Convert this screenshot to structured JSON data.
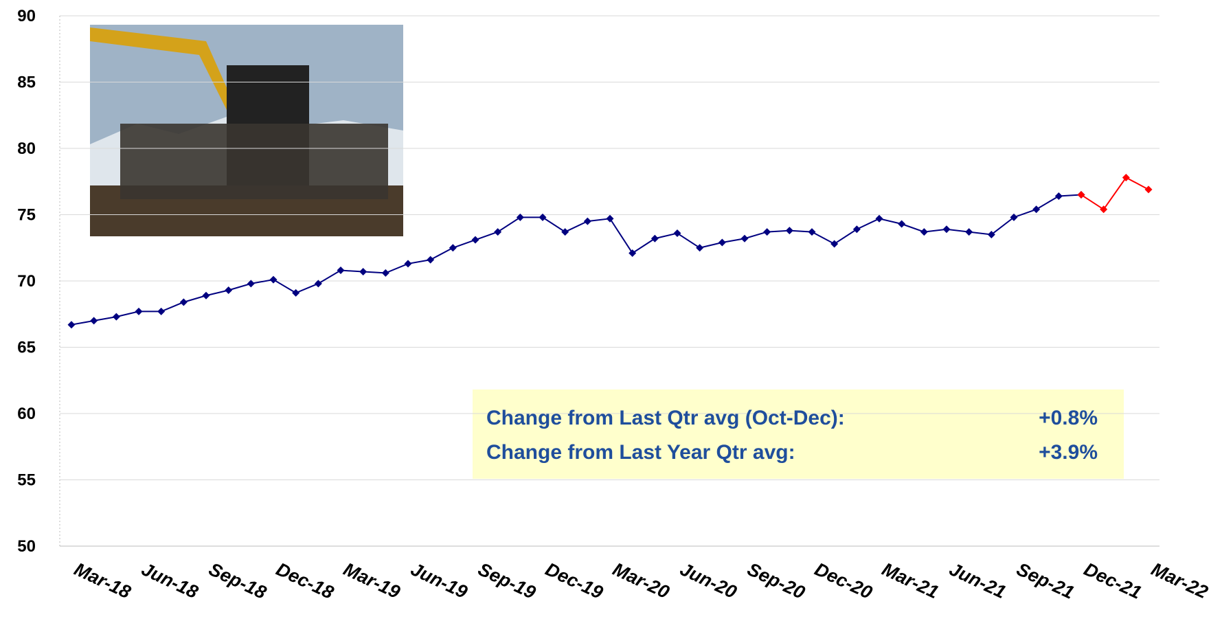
{
  "chart_data": {
    "type": "line",
    "categories": [
      "Mar-18",
      null,
      null,
      "Jun-18",
      null,
      null,
      "Sep-18",
      null,
      null,
      "Dec-18",
      null,
      null,
      "Mar-19",
      null,
      null,
      "Jun-19",
      null,
      null,
      "Sep-19",
      null,
      null,
      "Dec-19",
      null,
      null,
      "Mar-20",
      null,
      null,
      "Jun-20",
      null,
      null,
      "Sep-20",
      null,
      null,
      "Dec-20",
      null,
      null,
      "Mar-21",
      null,
      null,
      "Jun-21",
      null,
      null,
      "Sep-21",
      null,
      null,
      "Dec-21",
      null,
      null,
      "Mar-22"
    ],
    "series": [
      {
        "color": "#000080",
        "values": [
          66.7,
          67.0,
          67.3,
          67.7,
          67.7,
          68.4,
          68.9,
          69.3,
          69.8,
          70.1,
          69.1,
          69.8,
          70.8,
          70.7,
          70.6,
          71.3,
          71.6,
          72.5,
          73.1,
          73.7,
          74.8,
          74.8,
          73.7,
          74.5,
          74.7,
          72.1,
          73.2,
          73.6,
          72.5,
          72.9,
          73.2,
          73.7,
          73.8,
          73.7,
          72.8,
          73.9,
          74.7,
          74.3,
          73.7,
          73.9,
          73.7,
          73.5,
          74.8,
          75.4,
          76.4,
          76.5,
          null,
          null,
          null
        ]
      },
      {
        "color": "#ff0000",
        "values": [
          null,
          null,
          null,
          null,
          null,
          null,
          null,
          null,
          null,
          null,
          null,
          null,
          null,
          null,
          null,
          null,
          null,
          null,
          null,
          null,
          null,
          null,
          null,
          null,
          null,
          null,
          null,
          null,
          null,
          null,
          null,
          null,
          null,
          null,
          null,
          null,
          null,
          null,
          null,
          null,
          null,
          null,
          null,
          null,
          null,
          76.5,
          75.4,
          77.8,
          76.9
        ]
      }
    ],
    "ylim": [
      50,
      90
    ],
    "yticks": [
      50,
      55,
      60,
      65,
      70,
      75,
      80,
      85,
      90
    ],
    "grid": true,
    "annotations": [
      {
        "text": "Change from Last Qtr avg (Oct-Dec):",
        "value": "+0.8%"
      },
      {
        "text": "Change from Last Year Qtr avg:",
        "value": "+3.9%"
      }
    ]
  }
}
